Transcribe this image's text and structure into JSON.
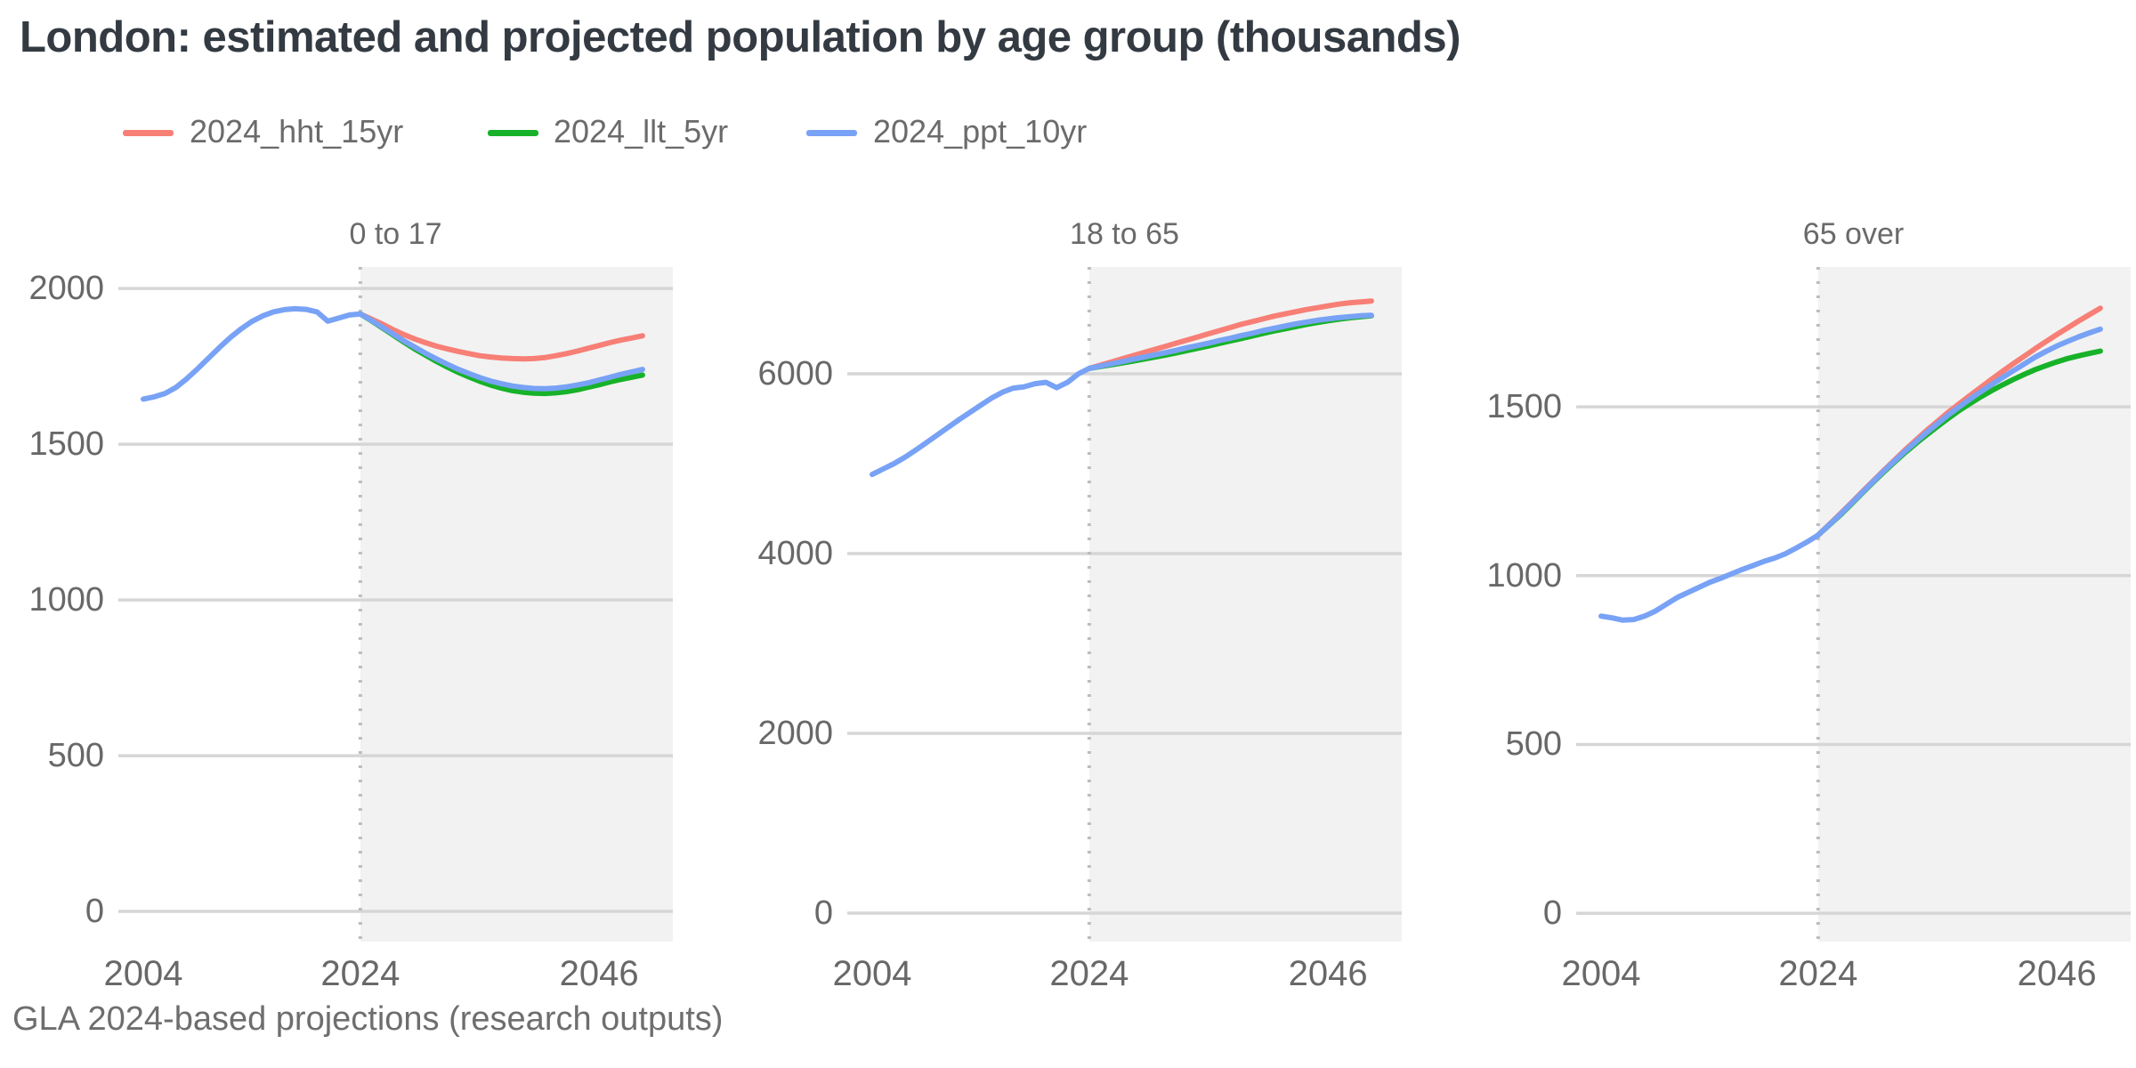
{
  "title": "London: estimated and projected population by age group (thousands)",
  "caption": "GLA 2024-based projections (research outputs)",
  "series": [
    {
      "id": "hht",
      "label": "2024_hht_15yr",
      "color": "#F77F76"
    },
    {
      "id": "llt",
      "label": "2024_llt_5yr",
      "color": "#17B229"
    },
    {
      "id": "ppt",
      "label": "2024_ppt_10yr",
      "color": "#78A2F5"
    }
  ],
  "chart_data": {
    "type": "line",
    "title": "London: estimated and projected population by age group (thousands)",
    "subtitle": "",
    "source_note": "GLA 2024-based projections (research outputs)",
    "legend_position": "top-left",
    "grid": true,
    "units": "thousands",
    "x_label": "",
    "y_label": "",
    "x_ticks": [
      2004,
      2024,
      2046
    ],
    "xlim": [
      2001.7,
      2052.8
    ],
    "history_years": {
      "start": 2004,
      "end": 2024
    },
    "projection_years": {
      "start": 2024,
      "end": 2050
    },
    "projection_start": 2024,
    "projection_shading": "light gray rectangle from 2024 to right edge with dotted vertical line at 2024",
    "history_color_follows": "ppt",
    "panels": [
      {
        "title": "0 to 17",
        "y_ticks": [
          0,
          500,
          1000,
          1500,
          2000
        ],
        "ylim": [
          -97,
          2069
        ],
        "history": [
          1645,
          1652,
          1663,
          1682,
          1710,
          1742,
          1776,
          1810,
          1842,
          1870,
          1894,
          1912,
          1925,
          1932,
          1935,
          1933,
          1925,
          1895,
          1905,
          1915,
          1918
        ],
        "proj": {
          "hht": [
            1918,
            1902,
            1886,
            1868,
            1852,
            1838,
            1826,
            1815,
            1806,
            1798,
            1791,
            1784,
            1780,
            1777,
            1775,
            1774,
            1775,
            1778,
            1784,
            1791,
            1799,
            1808,
            1817,
            1826,
            1834,
            1841,
            1848
          ],
          "llt": [
            1918,
            1897,
            1874,
            1851,
            1828,
            1806,
            1786,
            1766,
            1748,
            1731,
            1716,
            1702,
            1690,
            1680,
            1672,
            1667,
            1664,
            1663,
            1665,
            1669,
            1675,
            1683,
            1691,
            1700,
            1708,
            1715,
            1722
          ],
          "ppt": [
            1918,
            1898,
            1876,
            1854,
            1832,
            1812,
            1792,
            1774,
            1757,
            1741,
            1727,
            1714,
            1703,
            1694,
            1687,
            1682,
            1679,
            1678,
            1680,
            1684,
            1690,
            1697,
            1706,
            1715,
            1724,
            1732,
            1740
          ]
        }
      },
      {
        "title": "18 to 65",
        "y_ticks": [
          0,
          2000,
          4000,
          6000
        ],
        "ylim": [
          -317,
          7188
        ],
        "history": [
          4880,
          4940,
          5000,
          5070,
          5150,
          5235,
          5320,
          5405,
          5490,
          5570,
          5650,
          5730,
          5795,
          5840,
          5855,
          5890,
          5905,
          5845,
          5905,
          6000,
          6060
        ],
        "proj": {
          "hht": [
            6060,
            6095,
            6130,
            6165,
            6200,
            6235,
            6270,
            6305,
            6340,
            6375,
            6410,
            6445,
            6480,
            6515,
            6550,
            6580,
            6610,
            6640,
            6665,
            6690,
            6715,
            6735,
            6755,
            6775,
            6790,
            6800,
            6810
          ],
          "llt": [
            6060,
            6080,
            6100,
            6120,
            6140,
            6162,
            6185,
            6208,
            6232,
            6258,
            6284,
            6310,
            6338,
            6365,
            6392,
            6420,
            6448,
            6475,
            6500,
            6525,
            6548,
            6570,
            6590,
            6608,
            6622,
            6635,
            6645
          ],
          "ppt": [
            6060,
            6085,
            6110,
            6135,
            6160,
            6185,
            6210,
            6235,
            6260,
            6290,
            6315,
            6340,
            6370,
            6395,
            6425,
            6450,
            6480,
            6505,
            6530,
            6555,
            6575,
            6595,
            6610,
            6625,
            6635,
            6645,
            6650
          ]
        }
      },
      {
        "title": "65 over",
        "y_ticks": [
          0,
          500,
          1000,
          1500
        ],
        "ylim": [
          -84,
          1914
        ],
        "history": [
          880,
          875,
          868,
          870,
          880,
          895,
          915,
          935,
          950,
          965,
          980,
          992,
          1005,
          1018,
          1030,
          1042,
          1052,
          1065,
          1082,
          1100,
          1120
        ],
        "proj": {
          "hht": [
            1120,
            1151,
            1182,
            1214,
            1246,
            1278,
            1310,
            1341,
            1372,
            1401,
            1430,
            1457,
            1484,
            1509,
            1534,
            1558,
            1582,
            1605,
            1628,
            1650,
            1672,
            1693,
            1714,
            1734,
            1754,
            1773,
            1792
          ],
          "llt": [
            1120,
            1149,
            1178,
            1210,
            1242,
            1274,
            1305,
            1335,
            1364,
            1391,
            1417,
            1442,
            1466,
            1489,
            1510,
            1530,
            1548,
            1565,
            1581,
            1596,
            1610,
            1622,
            1633,
            1643,
            1651,
            1658,
            1665
          ],
          "ppt": [
            1120,
            1150,
            1180,
            1212,
            1244,
            1276,
            1308,
            1338,
            1368,
            1396,
            1424,
            1450,
            1476,
            1500,
            1523,
            1545,
            1566,
            1587,
            1607,
            1627,
            1647,
            1664,
            1680,
            1694,
            1707,
            1719,
            1730
          ]
        }
      }
    ],
    "style": {
      "shade_color": "#F2F2F2",
      "grid_color": "#D6D6D6",
      "dotted_line_color": "#BDBDBD",
      "line_width": 6
    }
  }
}
